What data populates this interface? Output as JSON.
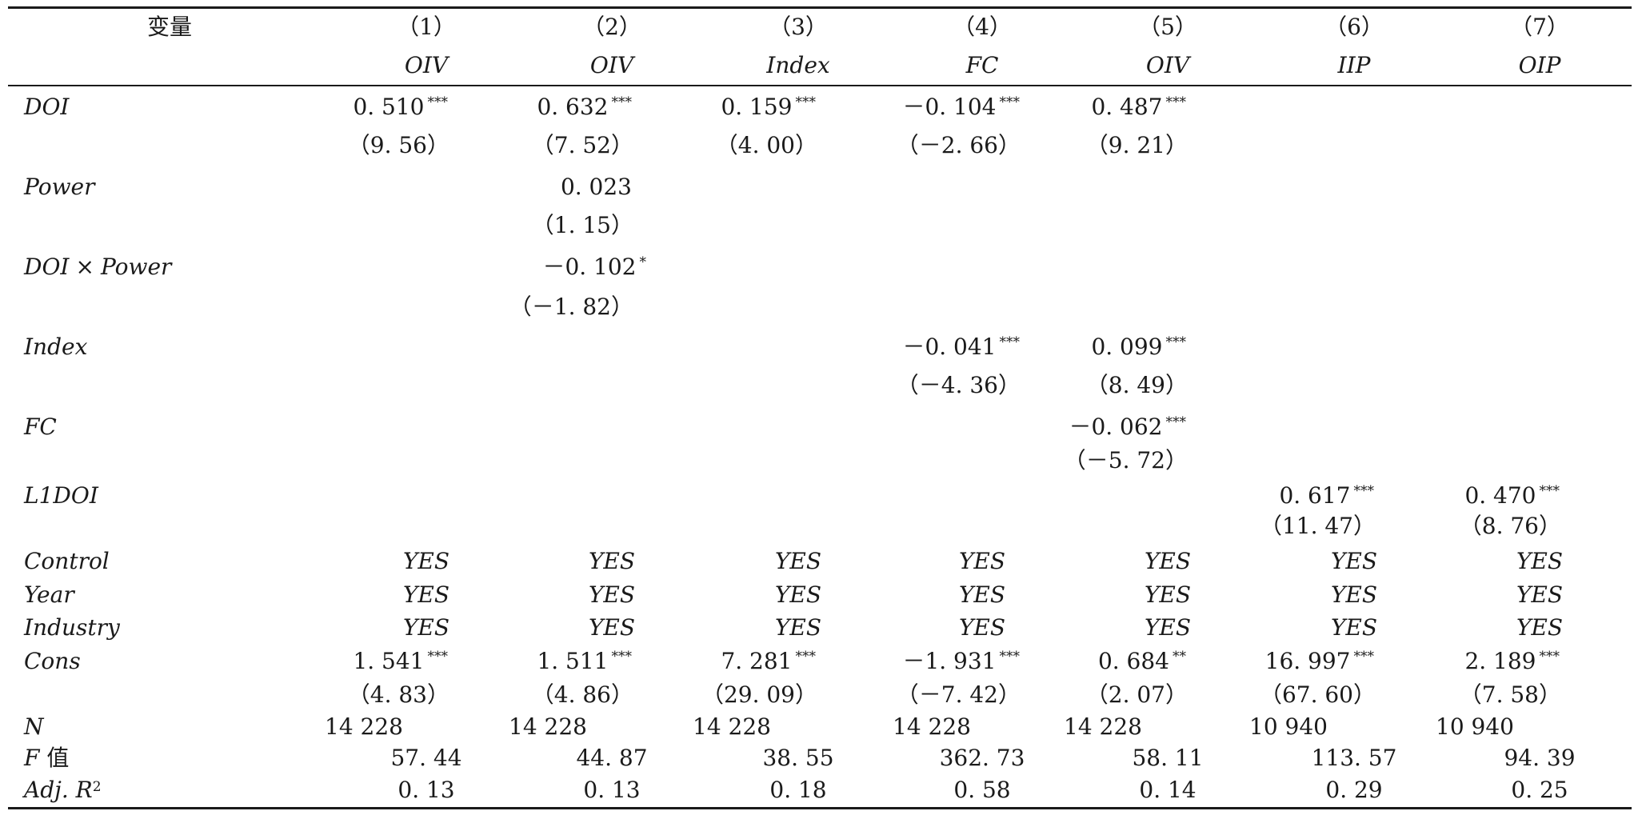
{
  "header": {
    "variable_label": "变量",
    "columns": [
      {
        "num": "（1）",
        "name": "OIV"
      },
      {
        "num": "（2）",
        "name": "OIV"
      },
      {
        "num": "（3）",
        "name": "Index"
      },
      {
        "num": "（4）",
        "name": "FC"
      },
      {
        "num": "（5）",
        "name": "OIV"
      },
      {
        "num": "（6）",
        "name": "IIP"
      },
      {
        "num": "（7）",
        "name": "OIP"
      }
    ]
  },
  "rows": {
    "doi": {
      "label": "DOI",
      "coef": [
        "0. 510",
        "0. 632",
        "0. 159",
        "－0. 104",
        "0. 487"
      ],
      "stars": [
        "***",
        "***",
        "***",
        "***",
        "***"
      ],
      "t": [
        "（9. 56）",
        "（7. 52）",
        "（4. 00）",
        "（－2. 66）",
        "（9. 21）"
      ]
    },
    "power": {
      "label": "Power",
      "coef": "0. 023",
      "t": "（1. 15）"
    },
    "doi_power": {
      "label_a": "DOI",
      "label_times": "×",
      "label_b": "Power",
      "coef": "－0. 102",
      "stars": "*",
      "t": "（－1. 82）"
    },
    "index": {
      "label": "Index",
      "coef": [
        "－0. 041",
        "0. 099"
      ],
      "stars": [
        "***",
        "***"
      ],
      "t": [
        "（－4. 36）",
        "（8. 49）"
      ]
    },
    "fc": {
      "label": "FC",
      "coef": "－0. 062",
      "stars": "***",
      "t": "（－5. 72）"
    },
    "l1doi": {
      "label": "L1DOI",
      "coef": [
        "0. 617",
        "0. 470"
      ],
      "stars": [
        "***",
        "***"
      ],
      "t": [
        "（11. 47）",
        "（8. 76）"
      ]
    },
    "control": {
      "label": "Control",
      "values": [
        "YES",
        "YES",
        "YES",
        "YES",
        "YES",
        "YES",
        "YES"
      ]
    },
    "year": {
      "label": "Year",
      "values": [
        "YES",
        "YES",
        "YES",
        "YES",
        "YES",
        "YES",
        "YES"
      ]
    },
    "industry": {
      "label": "Industry",
      "values": [
        "YES",
        "YES",
        "YES",
        "YES",
        "YES",
        "YES",
        "YES"
      ]
    },
    "cons": {
      "label": "Cons",
      "coef": [
        "1. 541",
        "1. 511",
        "7. 281",
        "－1. 931",
        "0. 684",
        "16. 997",
        "2. 189"
      ],
      "stars": [
        "***",
        "***",
        "***",
        "***",
        "**",
        "***",
        "***"
      ],
      "t": [
        "（4. 83）",
        "（4. 86）",
        "（29. 09）",
        "（－7. 42）",
        "（2. 07）",
        "（67. 60）",
        "（7. 58）"
      ]
    },
    "n": {
      "label": "N",
      "values": [
        "14 228",
        "14 228",
        "14 228",
        "14 228",
        "14 228",
        "10 940",
        "10 940"
      ]
    },
    "f": {
      "label_a": "F",
      "label_b": " 值",
      "values": [
        "57. 44",
        "44. 87",
        "38. 55",
        "362. 73",
        "58. 11",
        "113. 57",
        "94. 39"
      ]
    },
    "adjr2": {
      "label_a": "Adj.  R",
      "label_sup": "2",
      "values": [
        "0. 13",
        "0. 13",
        "0. 18",
        "0. 58",
        "0. 14",
        "0. 29",
        "0. 25"
      ]
    }
  }
}
